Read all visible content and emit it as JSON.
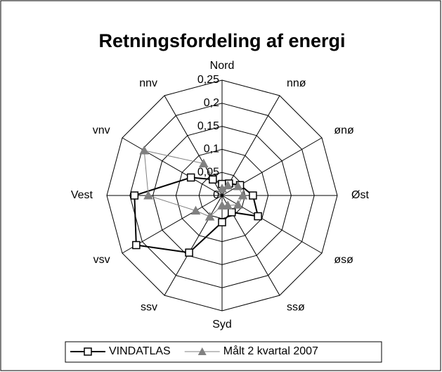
{
  "chart_data": {
    "type": "radar",
    "title": "Retningsfordeling af energi",
    "categories": [
      "Nord",
      "nnø",
      "ønø",
      "Øst",
      "øsø",
      "ssø",
      "Syd",
      "ssv",
      "vsv",
      "Vest",
      "vnv",
      "nnv"
    ],
    "series": [
      {
        "name": "VINDATLAS",
        "color": "#000000",
        "marker": "square",
        "values": [
          0.025,
          0.03,
          0.045,
          0.067,
          0.09,
          0.042,
          0.058,
          0.143,
          0.215,
          0.19,
          0.078,
          0.04
        ]
      },
      {
        "name": "Målt 2 kvartal 2007",
        "color": "#808080",
        "marker": "triangle",
        "values": [
          0.015,
          0.025,
          0.04,
          0.045,
          0.04,
          0.025,
          0.022,
          0.053,
          0.066,
          0.16,
          0.195,
          0.08
        ]
      }
    ],
    "ylim": [
      0,
      0.25
    ],
    "yticks": [
      0,
      {
        "value": 0.05,
        "label": "0,05"
      },
      {
        "value": 0.1,
        "label": "0,1"
      },
      {
        "value": 0.15,
        "label": "0,15"
      },
      {
        "value": 0.2,
        "label": "0,2"
      },
      {
        "value": 0.25,
        "label": "0,25"
      }
    ],
    "grid": true,
    "legend": "bottom"
  }
}
